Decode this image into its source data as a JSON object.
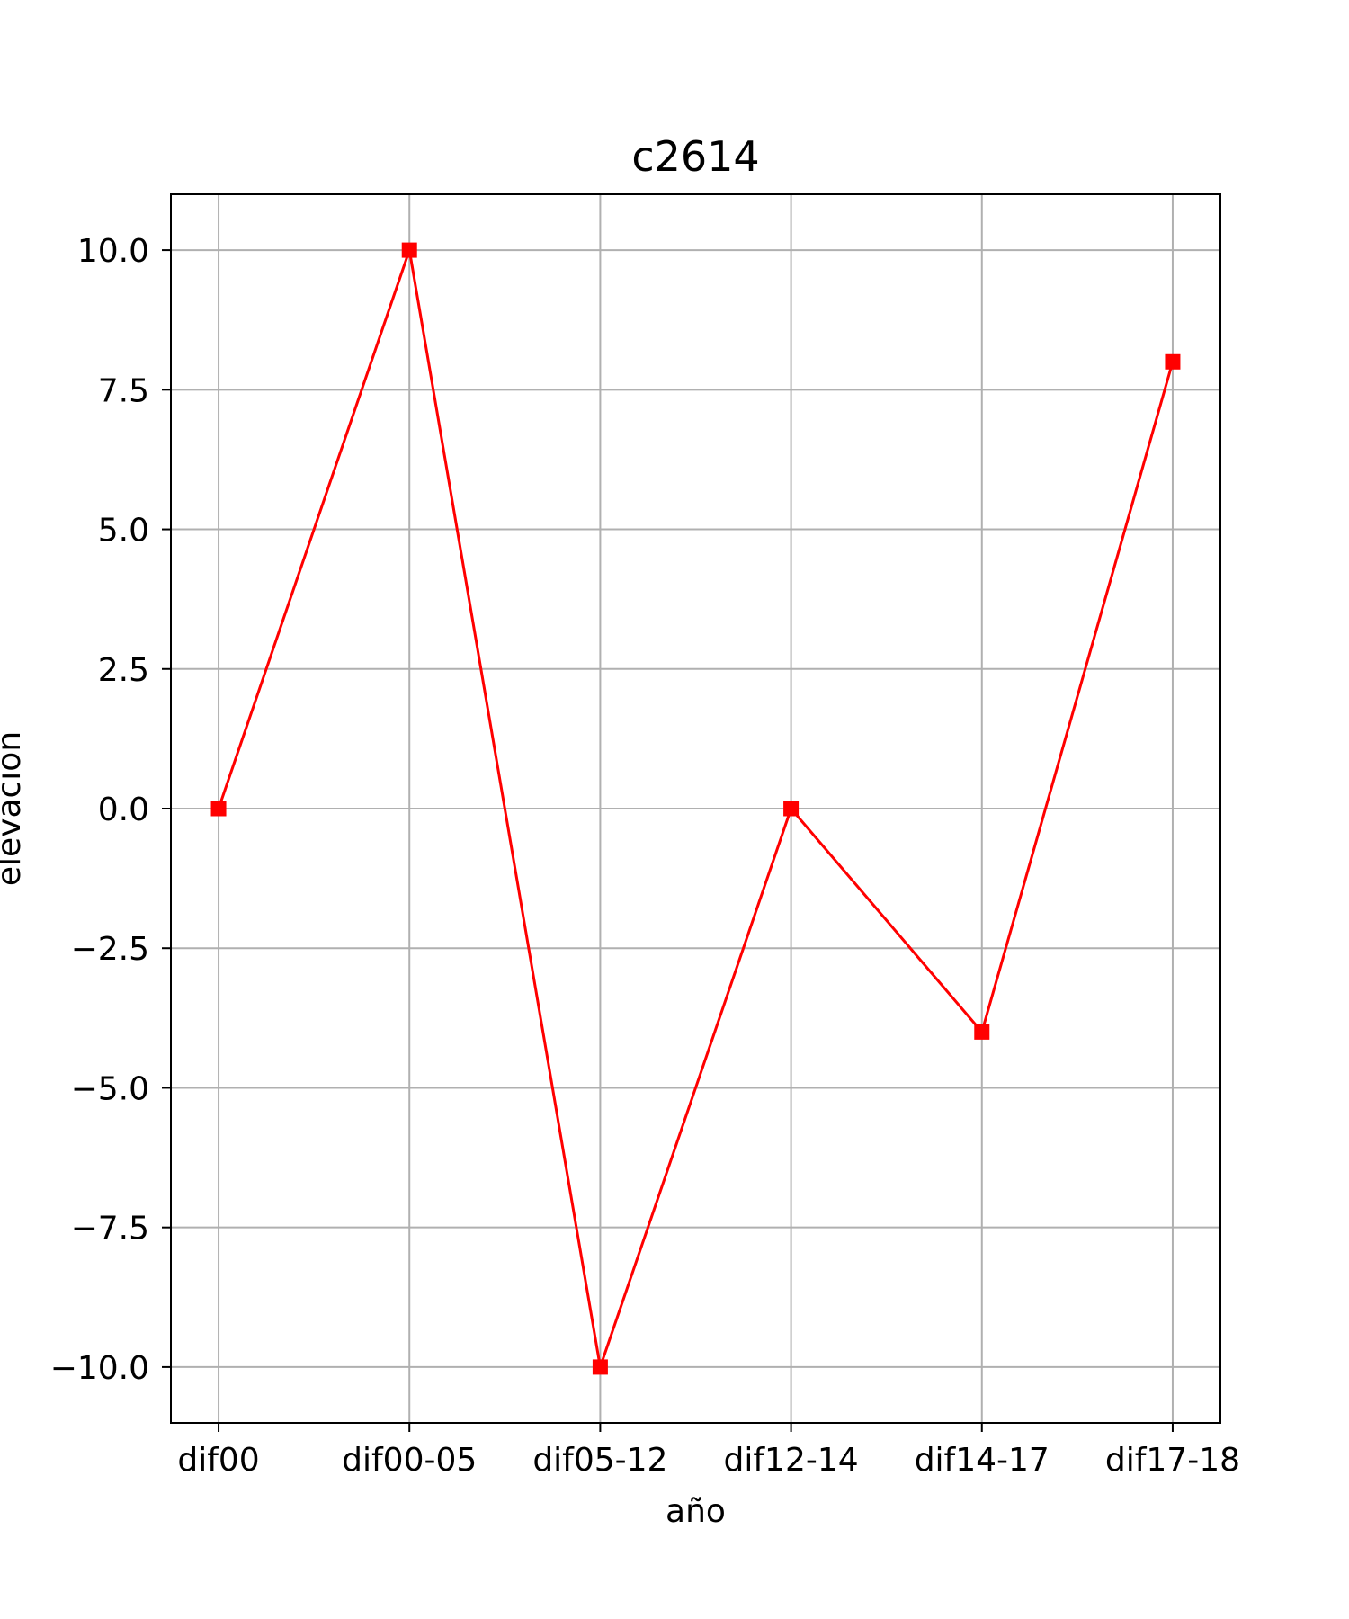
{
  "chart_data": {
    "type": "line",
    "title": "c2614",
    "xlabel": "año",
    "ylabel": "elevación",
    "categories": [
      "dif00",
      "dif00-05",
      "dif05-12",
      "dif12-14",
      "dif14-17",
      "dif17-18"
    ],
    "series": [
      {
        "values": [
          0,
          10,
          -10,
          0,
          -4,
          8
        ],
        "color": "#ff0000",
        "marker": "square"
      }
    ],
    "ylim": [
      -11,
      11
    ],
    "yticks": [
      -10,
      -7.5,
      -5,
      -2.5,
      0,
      2.5,
      5,
      7.5,
      10
    ],
    "ytick_labels": [
      "−10.0",
      "−7.5",
      "−5.0",
      "−2.5",
      "0.0",
      "2.5",
      "5.0",
      "7.5",
      "10.0"
    ],
    "grid": true,
    "grid_color": "#b0b0b0"
  }
}
